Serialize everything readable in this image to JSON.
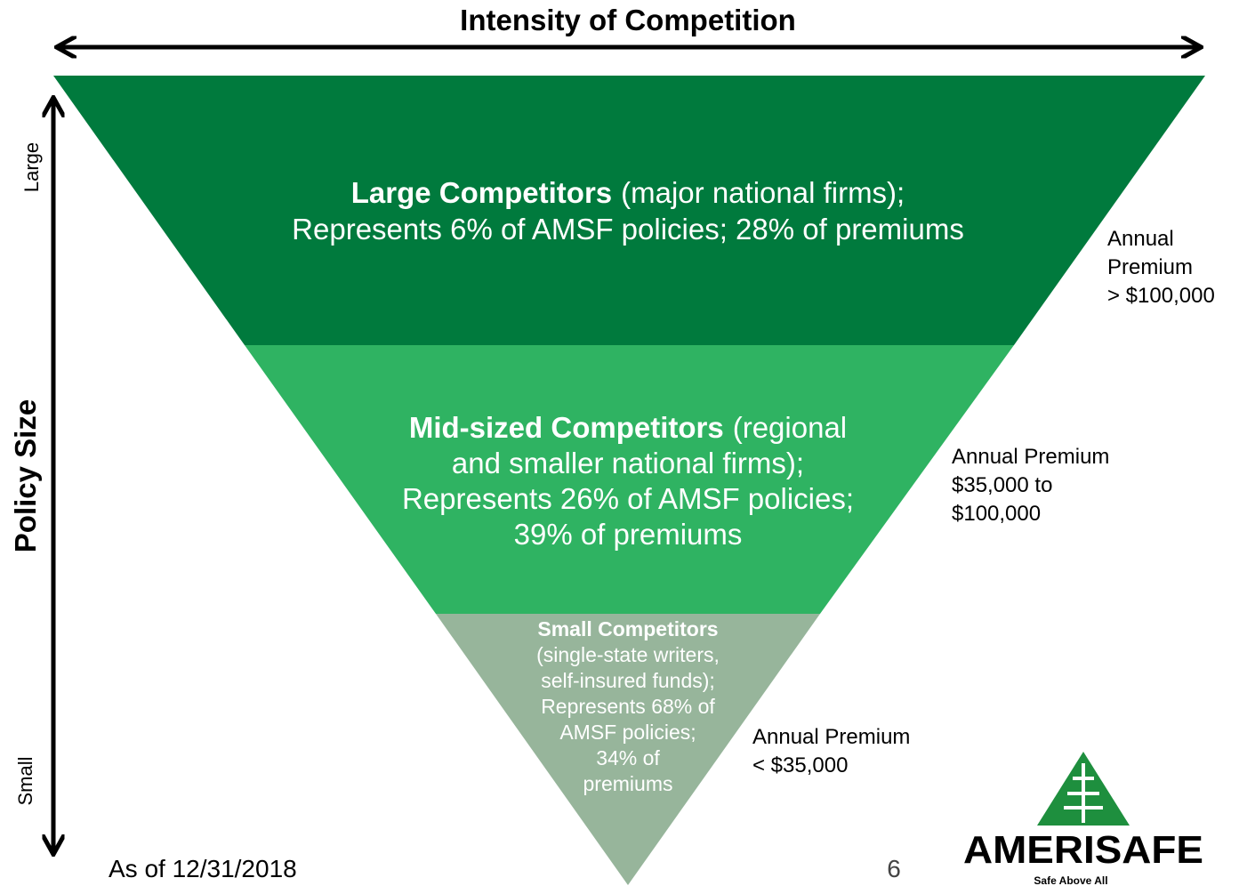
{
  "title": "Intensity of Competition",
  "axis": {
    "label": "Policy Size",
    "top": "Large",
    "bottom": "Small"
  },
  "tiers": [
    {
      "name": "Large Competitors",
      "name_suffix": "(major national firms);",
      "lines": [
        "Represents 6% of AMSF policies; 28% of premiums"
      ],
      "premium": [
        "Annual",
        "Premium",
        "> $100,000"
      ]
    },
    {
      "name": "Mid-sized Competitors",
      "name_suffix": "(regional",
      "lines": [
        "and smaller national firms);",
        "Represents 26% of AMSF policies;",
        "39% of premiums"
      ],
      "premium": [
        "Annual Premium",
        "$35,000 to",
        "$100,000"
      ]
    },
    {
      "name": "Small Competitors",
      "lines": [
        "(single-state writers,",
        "self-insured funds);",
        "Represents 68% of",
        "AMSF policies;",
        "34% of",
        "premiums"
      ],
      "premium": [
        "Annual Premium",
        "< $35,000"
      ]
    }
  ],
  "footer": {
    "date": "As of 12/31/2018",
    "page": "6"
  },
  "logo": {
    "name": "AMERISAFE",
    "tagline": "Safe Above All"
  }
}
